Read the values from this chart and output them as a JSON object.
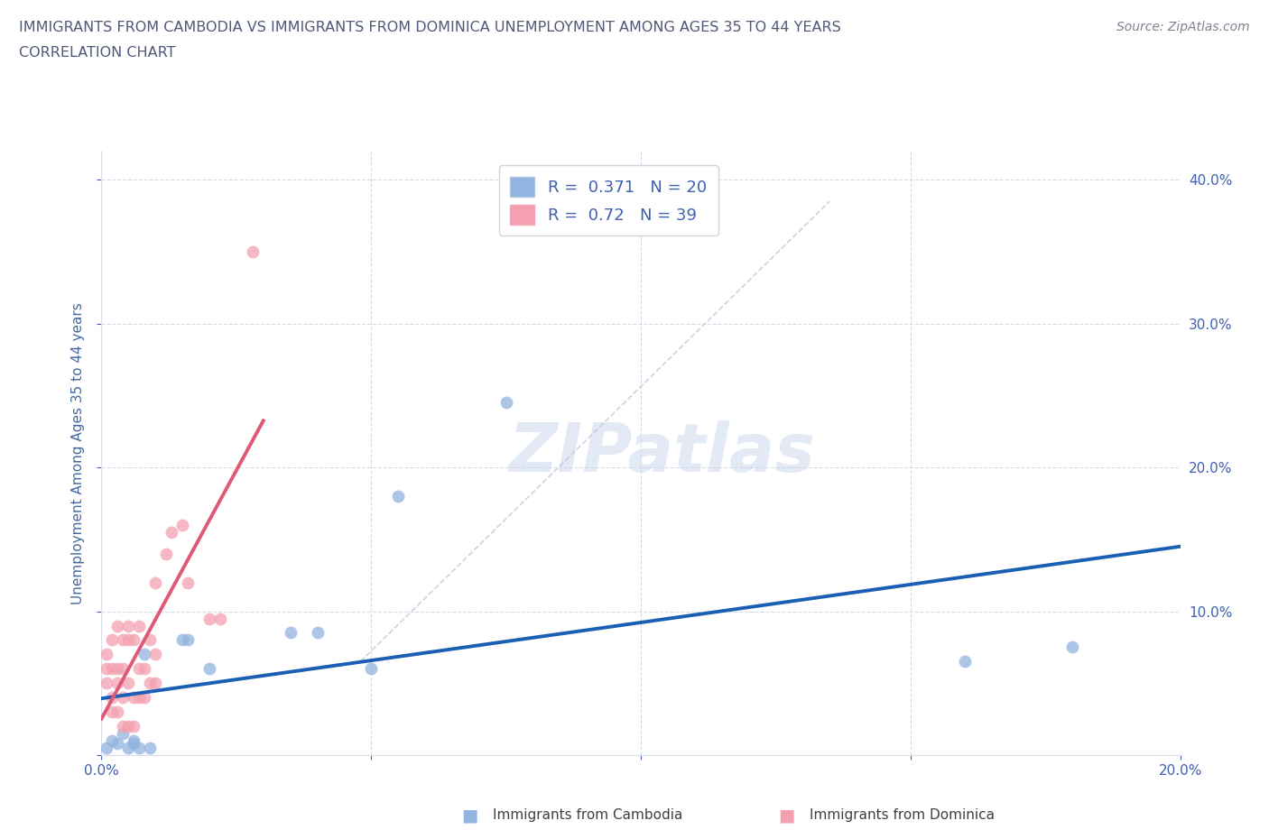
{
  "title_line1": "IMMIGRANTS FROM CAMBODIA VS IMMIGRANTS FROM DOMINICA UNEMPLOYMENT AMONG AGES 35 TO 44 YEARS",
  "title_line2": "CORRELATION CHART",
  "source": "Source: ZipAtlas.com",
  "ylabel": "Unemployment Among Ages 35 to 44 years",
  "xlim": [
    0.0,
    0.2
  ],
  "ylim": [
    0.0,
    0.42
  ],
  "yticks": [
    0.0,
    0.1,
    0.2,
    0.3,
    0.4
  ],
  "xticks": [
    0.0,
    0.05,
    0.1,
    0.15,
    0.2
  ],
  "cambodia_color": "#92b4e0",
  "dominica_color": "#f4a0b0",
  "cambodia_line_color": "#1a5fb4",
  "dominica_line_color": "#e05878",
  "R_cambodia": 0.371,
  "N_cambodia": 20,
  "R_dominica": 0.72,
  "N_dominica": 39,
  "cambodia_x": [
    0.001,
    0.002,
    0.003,
    0.004,
    0.005,
    0.006,
    0.006,
    0.007,
    0.008,
    0.009,
    0.015,
    0.016,
    0.02,
    0.035,
    0.04,
    0.05,
    0.055,
    0.075,
    0.16,
    0.18
  ],
  "cambodia_y": [
    0.005,
    0.01,
    0.008,
    0.015,
    0.005,
    0.008,
    0.01,
    0.005,
    0.07,
    0.005,
    0.08,
    0.08,
    0.06,
    0.085,
    0.085,
    0.06,
    0.18,
    0.245,
    0.065,
    0.075
  ],
  "dominica_x": [
    0.001,
    0.001,
    0.001,
    0.002,
    0.002,
    0.002,
    0.002,
    0.003,
    0.003,
    0.003,
    0.003,
    0.004,
    0.004,
    0.004,
    0.004,
    0.005,
    0.005,
    0.005,
    0.005,
    0.006,
    0.006,
    0.006,
    0.007,
    0.007,
    0.007,
    0.008,
    0.008,
    0.009,
    0.009,
    0.01,
    0.01,
    0.01,
    0.012,
    0.013,
    0.015,
    0.016,
    0.02,
    0.022,
    0.028
  ],
  "dominica_y": [
    0.06,
    0.07,
    0.05,
    0.03,
    0.04,
    0.06,
    0.08,
    0.03,
    0.05,
    0.06,
    0.09,
    0.02,
    0.04,
    0.06,
    0.08,
    0.02,
    0.05,
    0.08,
    0.09,
    0.02,
    0.04,
    0.08,
    0.04,
    0.06,
    0.09,
    0.04,
    0.06,
    0.05,
    0.08,
    0.05,
    0.07,
    0.12,
    0.14,
    0.155,
    0.16,
    0.12,
    0.095,
    0.095,
    0.35
  ],
  "watermark_text": "ZIPatlas",
  "background_color": "#ffffff",
  "grid_color": "#d0d8e8",
  "title_color": "#505878",
  "axis_label_color": "#4468a0",
  "tick_label_color": "#4060b0",
  "source_color": "#808090",
  "bottom_legend_label_color": "#404040"
}
